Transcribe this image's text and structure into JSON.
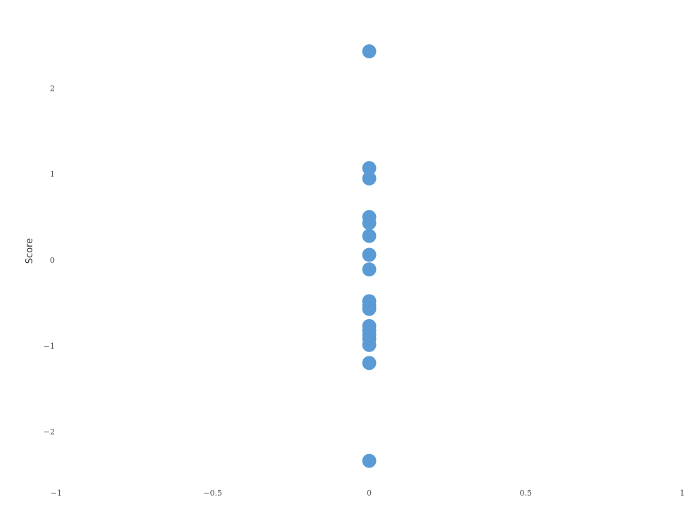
{
  "chart_data": {
    "type": "scatter",
    "title": "",
    "xlabel": "",
    "ylabel": "Score",
    "xlim": [
      -1,
      1
    ],
    "ylim": [
      -2.72,
      2.93
    ],
    "x_ticks": [
      -1,
      -0.5,
      0,
      0.5,
      1
    ],
    "x_tick_labels": [
      "−1",
      "−0.5",
      "0",
      "0.5",
      "1"
    ],
    "y_ticks": [
      -2,
      -1,
      0,
      1,
      2
    ],
    "y_tick_labels": [
      "−2",
      "−1",
      "0",
      "1",
      "2"
    ],
    "grid": false,
    "legend": "none",
    "point_color": "#5b9bd5",
    "series": [
      {
        "x": [
          0,
          0,
          0,
          0,
          0,
          0,
          0,
          0,
          0,
          0,
          0,
          0,
          0,
          0,
          0,
          0,
          0,
          0
        ],
        "y": [
          2.43,
          1.07,
          0.95,
          0.5,
          0.43,
          0.28,
          0.06,
          -0.11,
          -0.48,
          -0.53,
          -0.57,
          -0.77,
          -0.87,
          -0.92,
          -0.99,
          -1.2,
          -2.34,
          -0.82
        ]
      }
    ]
  }
}
